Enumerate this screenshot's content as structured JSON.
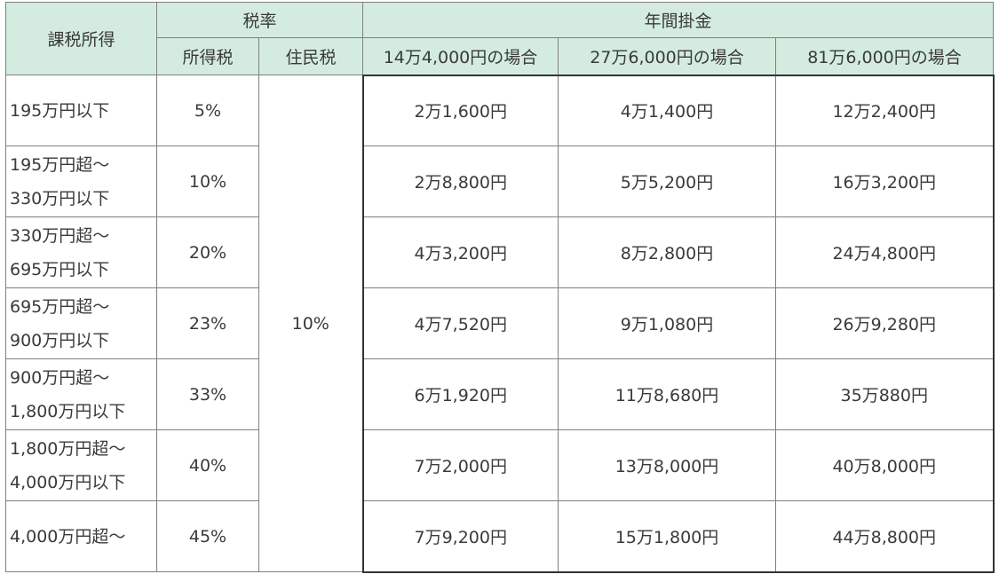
{
  "header": {
    "income": "課税所得",
    "tax_rate": "税率",
    "income_tax": "所得税",
    "resident_tax": "住民税",
    "annual": "年間掛金",
    "cases": [
      "14万4,000円の場合",
      "27万6,000円の場合",
      "81万6,000円の場合"
    ]
  },
  "resident_rate": "10%",
  "rows": [
    {
      "income_line1": "195万円以下",
      "income_line2": "",
      "rate": "5%",
      "a": "2万1,600円",
      "b": "4万1,400円",
      "c": "12万2,400円"
    },
    {
      "income_line1": "195万円超～",
      "income_line2": "330万円以下",
      "rate": "10%",
      "a": "2万8,800円",
      "b": "5万5,200円",
      "c": "16万3,200円"
    },
    {
      "income_line1": "330万円超～",
      "income_line2": "695万円以下",
      "rate": "20%",
      "a": "4万3,200円",
      "b": "8万2,800円",
      "c": "24万4,800円"
    },
    {
      "income_line1": "695万円超～",
      "income_line2": "900万円以下",
      "rate": "23%",
      "a": "4万7,520円",
      "b": "9万1,080円",
      "c": "26万9,280円"
    },
    {
      "income_line1": "900万円超～",
      "income_line2": "1,800万円以下",
      "rate": "33%",
      "a": "6万1,920円",
      "b": "11万8,680円",
      "c": "35万880円"
    },
    {
      "income_line1": "1,800万円超～",
      "income_line2": "4,000万円以下",
      "rate": "40%",
      "a": "7万2,000円",
      "b": "13万8,000円",
      "c": "40万8,000円"
    },
    {
      "income_line1": "4,000万円超～",
      "income_line2": "",
      "rate": "45%",
      "a": "7万9,200円",
      "b": "15万1,800円",
      "c": "44万8,800円"
    }
  ]
}
